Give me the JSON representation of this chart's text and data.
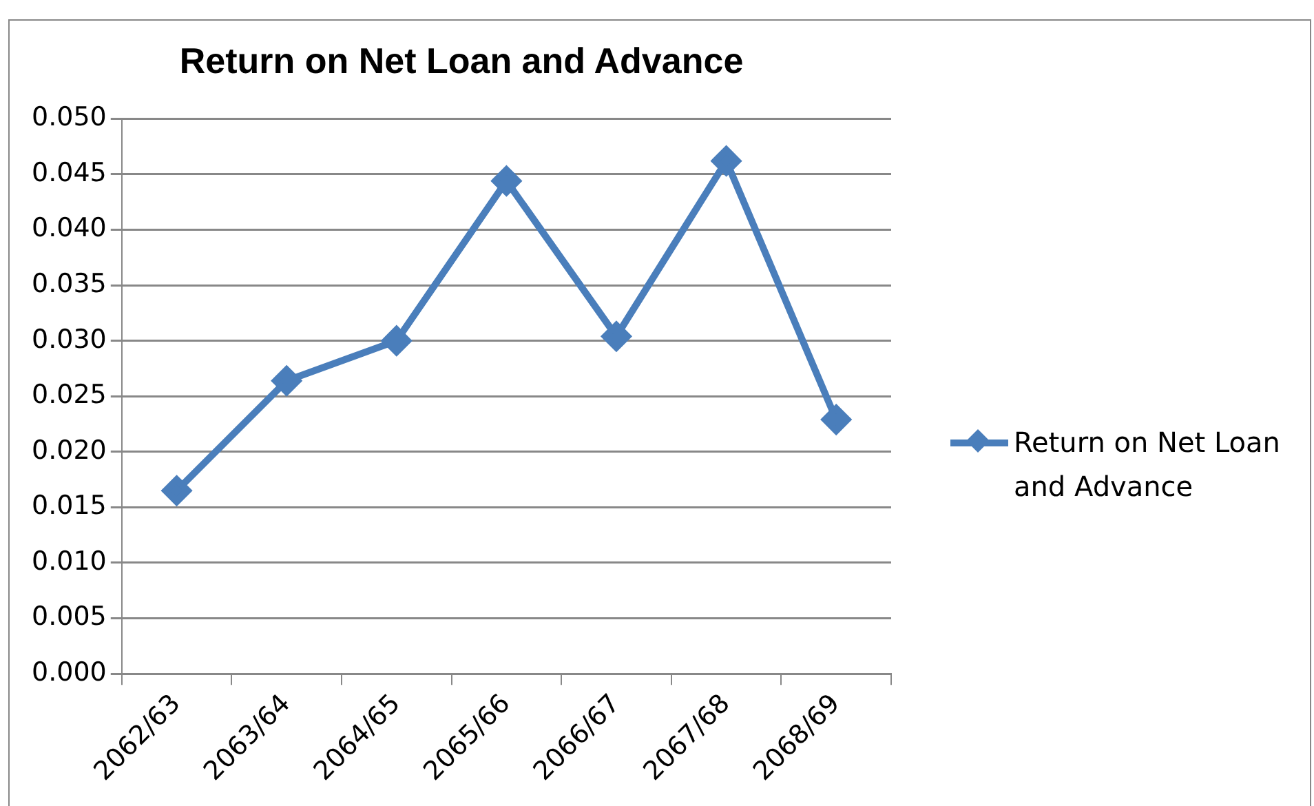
{
  "chart_data": {
    "type": "line",
    "title": "Return on Net Loan and Advance",
    "categories": [
      "2062/63",
      "2063/64",
      "2064/65",
      "2065/66",
      "2066/67",
      "2067/68",
      "2068/69"
    ],
    "series": [
      {
        "name": "Return on Net Loan and Advance",
        "color": "#4a7ebb",
        "values": [
          0.0165,
          0.0264,
          0.03,
          0.0444,
          0.0304,
          0.0462,
          0.0229
        ]
      }
    ],
    "ylim": [
      0,
      0.05
    ],
    "yticks": [
      {
        "value": 0,
        "label": "0.000"
      },
      {
        "value": 0.005,
        "label": "0.005"
      },
      {
        "value": 0.01,
        "label": "0.010"
      },
      {
        "value": 0.015,
        "label": "0.015"
      },
      {
        "value": 0.02,
        "label": "0.020"
      },
      {
        "value": 0.025,
        "label": "0.025"
      },
      {
        "value": 0.03,
        "label": "0.030"
      },
      {
        "value": 0.035,
        "label": "0.035"
      },
      {
        "value": 0.04,
        "label": "0.040"
      },
      {
        "value": 0.045,
        "label": "0.045"
      },
      {
        "value": 0.05,
        "label": "0.050"
      }
    ],
    "grid": "y",
    "legend": "right",
    "marker": "diamond",
    "line_style": "solid"
  }
}
